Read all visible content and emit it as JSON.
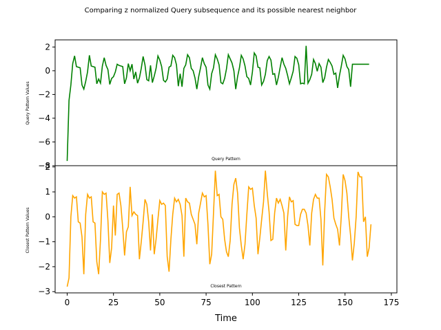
{
  "figure_title": "Comparing z normalized Query subsequence and its possible nearest neighbor",
  "chart_data": [
    {
      "type": "line",
      "panel": "top",
      "title": "Query Pattern",
      "ylabel": "Query Pattern Values",
      "xlabel": "",
      "xlim": [
        -6.5,
        178
      ],
      "ylim": [
        -8.0,
        2.6
      ],
      "yticks": [
        -8,
        -6,
        -4,
        -2,
        0,
        2
      ],
      "grid": false,
      "color": "#008000",
      "series": [
        {
          "values": [
            -7.6,
            -2.5,
            -1.2,
            0.6,
            1.25,
            0.35,
            0.3,
            0.25,
            -1.2,
            -1.55,
            -0.9,
            -0.1,
            1.3,
            0.4,
            0.35,
            0.3,
            -1.1,
            -0.7,
            -1.05,
            0.4,
            1.1,
            0.45,
            0.1,
            -1.15,
            -0.65,
            -0.5,
            -0.1,
            0.55,
            0.45,
            0.4,
            0.35,
            -1.1,
            -0.6,
            0.6,
            0.0,
            0.55,
            -0.7,
            -0.1,
            -1.05,
            -0.6,
            0.2,
            1.2,
            0.5,
            -0.75,
            -0.85,
            0.45,
            -1.0,
            -0.45,
            0.2,
            1.25,
            0.9,
            0.35,
            -0.8,
            -0.95,
            -0.7,
            0.3,
            0.4,
            1.3,
            1.1,
            0.5,
            -1.3,
            -0.25,
            -1.35,
            0.2,
            0.5,
            1.35,
            1.1,
            0.2,
            0.0,
            -0.6,
            -1.55,
            -0.5,
            0.25,
            1.1,
            0.6,
            0.3,
            -1.2,
            -1.55,
            -0.25,
            0.25,
            1.35,
            1.0,
            0.5,
            -1.0,
            -1.1,
            -0.65,
            0.15,
            1.35,
            1.0,
            0.65,
            0.0,
            -1.55,
            -0.5,
            0.25,
            1.3,
            1.0,
            0.4,
            -0.5,
            -0.65,
            -1.2,
            -0.1,
            1.5,
            1.25,
            0.3,
            0.25,
            -1.2,
            -0.9,
            -0.3,
            0.85,
            1.2,
            0.9,
            -0.3,
            -0.25,
            -1.2,
            -0.55,
            0.3,
            1.1,
            0.55,
            0.2,
            -0.4,
            -1.1,
            -0.6,
            -0.05,
            1.2,
            1.05,
            0.5,
            -1.1,
            -1.05,
            -1.1,
            2.1,
            -1.05,
            -0.75,
            -0.3,
            0.95,
            0.6,
            -0.05,
            0.6,
            0.3,
            -1.0,
            -0.6,
            0.3,
            0.95,
            0.7,
            0.4,
            -0.3,
            -0.2,
            -1.45,
            -0.4,
            0.4,
            1.3,
            1.0,
            0.35,
            0.1,
            -1.35,
            0.55,
            0.55,
            0.55,
            0.55,
            0.55,
            0.55,
            0.55,
            0.55,
            0.55,
            0.55
          ]
        }
      ]
    },
    {
      "type": "line",
      "panel": "bottom",
      "title": "Closest Pattern",
      "ylabel": "Closest Pattern Values",
      "xlabel": "Time",
      "xlim": [
        -6.5,
        178
      ],
      "ylim": [
        -3.05,
        2.05
      ],
      "xticks": [
        0,
        25,
        50,
        75,
        100,
        125,
        150,
        175
      ],
      "yticks": [
        -3,
        -2,
        -1,
        0,
        1,
        2
      ],
      "grid": false,
      "color": "#FFA500",
      "series": [
        {
          "values": [
            -2.8,
            -2.45,
            0.0,
            0.85,
            0.75,
            0.8,
            -0.2,
            -0.25,
            -0.8,
            -2.3,
            0.1,
            0.9,
            0.75,
            0.8,
            -0.2,
            -0.25,
            -1.8,
            -2.3,
            -0.9,
            1.0,
            0.9,
            0.95,
            -0.15,
            -1.85,
            -1.25,
            0.45,
            -0.75,
            0.9,
            0.95,
            0.45,
            -0.45,
            -1.55,
            -0.6,
            -0.4,
            1.2,
            0.05,
            0.2,
            0.1,
            0.05,
            -1.7,
            -1.0,
            -0.2,
            0.7,
            0.5,
            -0.2,
            -1.35,
            0.1,
            -1.5,
            -0.9,
            -0.1,
            0.65,
            0.5,
            0.55,
            0.45,
            -1.6,
            -2.2,
            -0.9,
            0.1,
            0.75,
            0.6,
            0.7,
            0.5,
            0.05,
            -1.6,
            0.75,
            0.6,
            0.55,
            0.1,
            -0.1,
            -0.3,
            -1.1,
            0.15,
            0.55,
            0.95,
            0.8,
            0.85,
            -0.3,
            -1.9,
            -1.5,
            0.15,
            1.85,
            0.85,
            0.9,
            0.0,
            -0.1,
            -0.9,
            -1.4,
            -1.6,
            -0.95,
            0.5,
            1.3,
            1.55,
            0.95,
            -0.45,
            -1.15,
            -1.7,
            -1.1,
            0.1,
            1.2,
            1.1,
            1.15,
            0.45,
            -0.05,
            -1.5,
            -0.85,
            -0.1,
            0.6,
            1.85,
            0.95,
            0.2,
            -0.95,
            -0.9,
            0.15,
            0.75,
            0.55,
            0.7,
            0.45,
            0.15,
            -1.35,
            0.0,
            0.8,
            0.6,
            0.65,
            -0.3,
            -0.35,
            -0.35,
            0.1,
            0.3,
            0.3,
            0.15,
            -0.35,
            -1.15,
            0.15,
            0.7,
            0.9,
            0.75,
            0.75,
            -0.1,
            -1.95,
            0.2,
            1.7,
            1.6,
            1.2,
            0.7,
            -0.05,
            -0.3,
            -0.5,
            -1.15,
            0.05,
            1.7,
            1.45,
            0.95,
            0.0,
            -0.75,
            -1.75,
            -1.05,
            0.0,
            1.8,
            1.6,
            1.6,
            -0.2,
            0.0,
            -1.6,
            -1.25,
            -0.3
          ]
        }
      ]
    }
  ]
}
